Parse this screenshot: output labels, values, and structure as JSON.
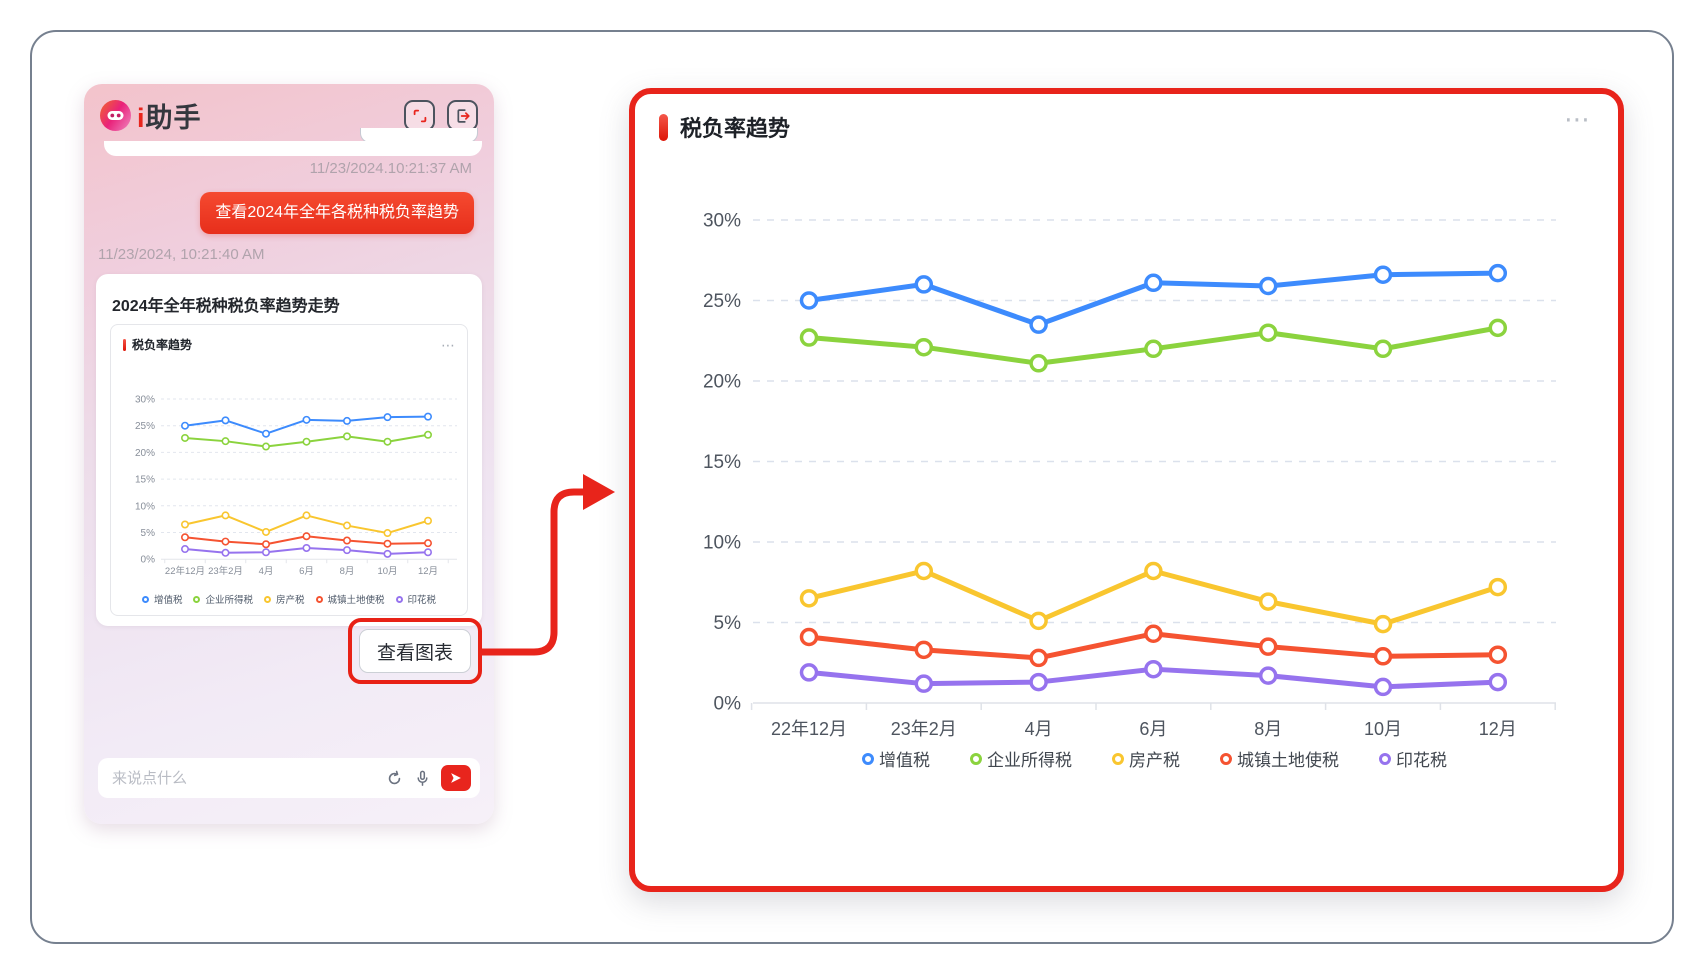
{
  "left_panel": {
    "brand": {
      "i": "i",
      "name": "助手"
    },
    "icons": {
      "expand": "expand-icon",
      "exit": "exit-icon",
      "refresh": "refresh-icon",
      "microphone": "microphone-icon",
      "send": "send-icon"
    },
    "timestamp_first": "11/23/2024.10:21:37 AM",
    "user_message": "查看2024年全年各税种税负率趋势",
    "timestamp_second": "11/23/2024, 10:21:40 AM",
    "card_title": "2024年全年税种税负率趋势走势",
    "mini_chart_title": "税负率趋势",
    "mini_menu_icon": "⋯",
    "view_chart_button": "查看图表",
    "input_placeholder": "来说点什么"
  },
  "chart_panel": {
    "title": "税负率趋势",
    "menu_icon": "⋯"
  },
  "chart_data": {
    "type": "line",
    "title": "税负率趋势",
    "categories": [
      "22年12月",
      "23年2月",
      "4月",
      "6月",
      "8月",
      "10月",
      "12月"
    ],
    "series": [
      {
        "name": "增值税",
        "color": "#3d8bfd",
        "values": [
          25.0,
          26.0,
          23.5,
          26.1,
          25.9,
          26.6,
          26.7
        ]
      },
      {
        "name": "企业所得税",
        "color": "#8bd33e",
        "values": [
          22.7,
          22.1,
          21.1,
          22.0,
          23.0,
          22.0,
          23.3
        ]
      },
      {
        "name": "房产税",
        "color": "#f9c62f",
        "values": [
          6.5,
          8.2,
          5.1,
          8.2,
          6.3,
          4.9,
          7.2
        ]
      },
      {
        "name": "城镇土地使税",
        "color": "#f55331",
        "values": [
          4.1,
          3.3,
          2.8,
          4.3,
          3.5,
          2.9,
          3.0
        ]
      },
      {
        "name": "印花税",
        "color": "#9673ee",
        "values": [
          1.9,
          1.2,
          1.3,
          2.1,
          1.7,
          1.0,
          1.3
        ]
      }
    ],
    "y_ticks": [
      "30%",
      "25%",
      "20%",
      "15%",
      "10%",
      "5%",
      "0%"
    ],
    "ylim": [
      0,
      30
    ],
    "grid": "horizontal dashed",
    "legend_position": "bottom"
  }
}
